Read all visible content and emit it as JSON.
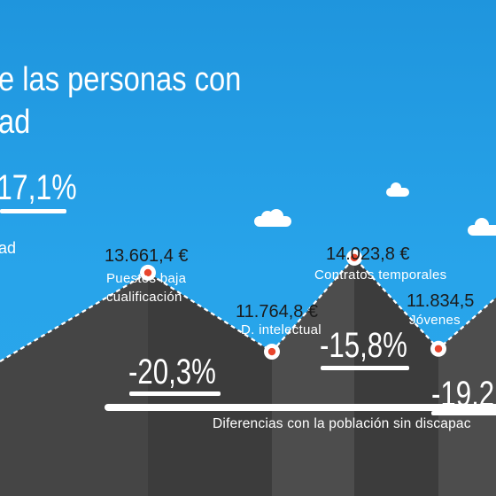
{
  "title": {
    "line1": "e las personas con",
    "line2": "ad"
  },
  "headline_value": "17,1%",
  "side_text": "ad",
  "colors": {
    "sky": "#2aa7ec",
    "mountain_light": "#4d4d4d",
    "mountain_dark": "#3c3c3c",
    "marker_ring": "#ffffff",
    "marker_fill": "#e8452c"
  },
  "chart_data": {
    "type": "area",
    "categories": [
      "Puestos baja cualificación",
      "D. intelectual",
      "Contratos temporales",
      "Jóvenes"
    ],
    "points": [
      {
        "value_label": "13.661,4 €",
        "value": 13661.4,
        "category_lines": [
          "Puestos baja",
          "cualificación"
        ],
        "difference": "-20,3%"
      },
      {
        "value_label": "11.764,8 €",
        "value": 11764.8,
        "category_lines": [
          "D. intelectual"
        ],
        "difference": null
      },
      {
        "value_label": "14.023,8 €",
        "value": 14023.8,
        "category_lines": [
          "Contratos temporales"
        ],
        "difference": "-15,8%"
      },
      {
        "value_label": "11.834,5",
        "value": 11834.5,
        "category_lines": [
          "Jóvenes"
        ],
        "difference": "-19,2"
      }
    ],
    "footer": "Diferencias con la población sin discapac"
  }
}
